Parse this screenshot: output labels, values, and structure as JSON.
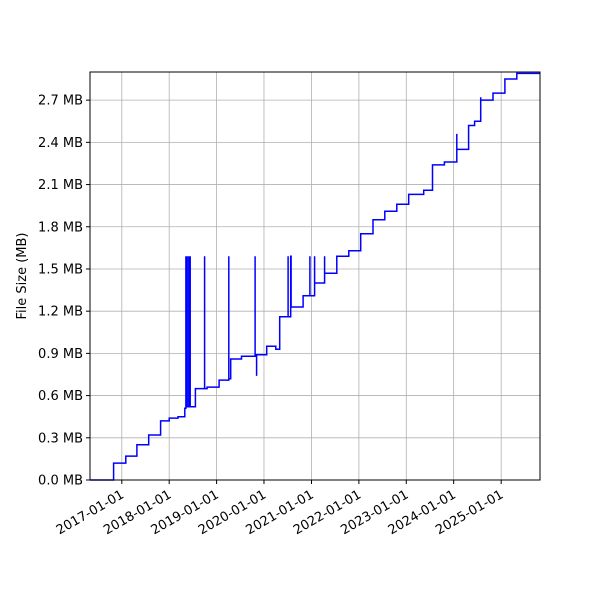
{
  "chart_data": {
    "type": "line",
    "step": "post",
    "title": "",
    "xlabel": "",
    "ylabel": "File Size (MB)",
    "xlim": [
      "2016-05-01",
      "2025-10-27"
    ],
    "ylim": [
      0,
      2.9
    ],
    "grid": true,
    "x_ticks": [
      "2017-01-01",
      "2018-01-01",
      "2019-01-01",
      "2020-01-01",
      "2021-01-01",
      "2022-01-01",
      "2023-01-01",
      "2024-01-01",
      "2025-01-01"
    ],
    "y_ticks": [
      0.0,
      0.3,
      0.6,
      0.9,
      1.2,
      1.5,
      1.8,
      2.1,
      2.4,
      2.7
    ],
    "y_tick_labels": [
      "0.0 MB",
      "0.3 MB",
      "0.6 MB",
      "0.9 MB",
      "1.2 MB",
      "1.5 MB",
      "1.8 MB",
      "2.1 MB",
      "2.4 MB",
      "2.7 MB"
    ],
    "series": [
      {
        "color": "#0000ff",
        "points": [
          [
            "2016-05-01",
            0.0
          ],
          [
            "2016-10-30",
            0.12
          ],
          [
            "2017-02-01",
            0.17
          ],
          [
            "2017-04-27",
            0.25
          ],
          [
            "2017-07-27",
            0.32
          ],
          [
            "2017-10-27",
            0.42
          ],
          [
            "2018-01-01",
            0.44
          ],
          [
            "2018-03-10",
            0.45
          ],
          [
            "2018-05-01",
            0.51
          ],
          [
            "2018-05-10",
            1.59
          ],
          [
            "2018-05-10",
            0.52
          ],
          [
            "2018-05-20",
            1.59
          ],
          [
            "2018-05-20",
            0.52
          ],
          [
            "2018-06-01",
            1.59
          ],
          [
            "2018-06-01",
            0.52
          ],
          [
            "2018-06-12",
            1.59
          ],
          [
            "2018-06-12",
            0.52
          ],
          [
            "2018-07-22",
            0.65
          ],
          [
            "2018-10-01",
            1.59
          ],
          [
            "2018-10-01",
            0.65
          ],
          [
            "2018-10-20",
            0.66
          ],
          [
            "2019-01-20",
            0.71
          ],
          [
            "2019-04-05",
            1.59
          ],
          [
            "2019-04-05",
            0.72
          ],
          [
            "2019-04-20",
            0.86
          ],
          [
            "2019-07-12",
            0.88
          ],
          [
            "2019-10-25",
            1.59
          ],
          [
            "2019-10-25",
            0.88
          ],
          [
            "2019-11-05",
            0.74
          ],
          [
            "2019-11-05",
            0.89
          ],
          [
            "2020-01-22",
            0.95
          ],
          [
            "2020-04-01",
            0.93
          ],
          [
            "2020-05-01",
            1.16
          ],
          [
            "2020-07-05",
            1.59
          ],
          [
            "2020-07-05",
            1.16
          ],
          [
            "2020-07-25",
            1.59
          ],
          [
            "2020-07-28",
            1.23
          ],
          [
            "2020-10-28",
            1.31
          ],
          [
            "2020-12-20",
            1.59
          ],
          [
            "2020-12-20",
            1.31
          ],
          [
            "2021-01-25",
            1.59
          ],
          [
            "2021-01-25",
            1.4
          ],
          [
            "2021-04-12",
            1.59
          ],
          [
            "2021-04-12",
            1.47
          ],
          [
            "2021-07-15",
            1.59
          ],
          [
            "2021-10-15",
            1.63
          ],
          [
            "2022-01-15",
            1.75
          ],
          [
            "2022-04-20",
            1.85
          ],
          [
            "2022-07-20",
            1.91
          ],
          [
            "2022-10-20",
            1.96
          ],
          [
            "2023-01-20",
            2.03
          ],
          [
            "2023-05-15",
            2.06
          ],
          [
            "2023-07-22",
            2.24
          ],
          [
            "2023-10-22",
            2.26
          ],
          [
            "2024-01-25",
            2.46
          ],
          [
            "2024-01-25",
            2.35
          ],
          [
            "2024-04-25",
            2.52
          ],
          [
            "2024-06-10",
            2.55
          ],
          [
            "2024-07-27",
            2.72
          ],
          [
            "2024-07-27",
            2.7
          ],
          [
            "2024-10-30",
            2.75
          ],
          [
            "2025-01-30",
            2.85
          ],
          [
            "2025-05-01",
            2.89
          ],
          [
            "2025-10-27",
            2.89
          ]
        ]
      }
    ]
  }
}
